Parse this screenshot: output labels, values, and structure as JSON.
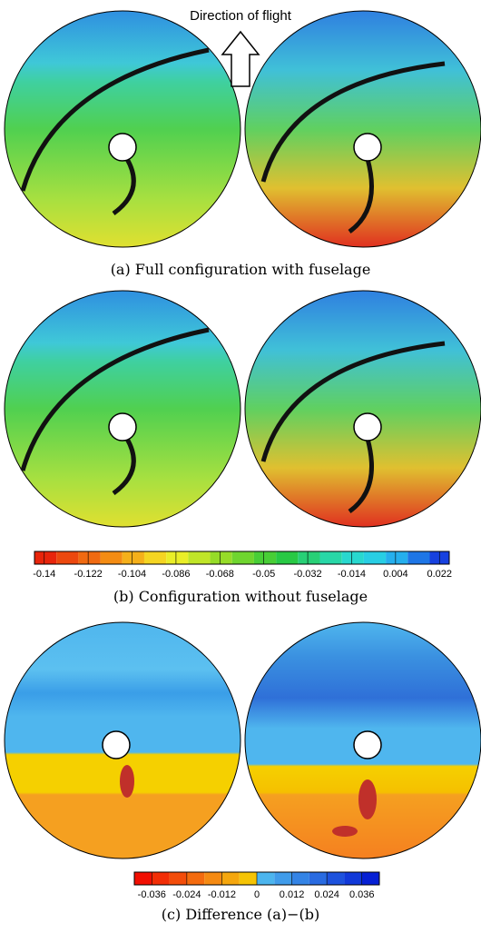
{
  "header": {
    "direction": "Direction of flight"
  },
  "captions": {
    "a": "(a) Full configuration with fuselage",
    "b": "(b) Configuration without fuselage",
    "c": "(c) Difference (a)−(b)"
  },
  "colorbar_a": {
    "range": [
      -0.144,
      0.026
    ],
    "ticks": [
      -0.14,
      -0.122,
      -0.104,
      -0.086,
      -0.068,
      -0.05,
      -0.032,
      -0.014,
      0.004,
      0.022
    ]
  },
  "colorbar_c": {
    "range": [
      -0.042,
      0.042
    ],
    "ticks": [
      -0.036,
      -0.024,
      -0.012,
      0,
      0.012,
      0.024,
      0.036
    ]
  }
}
